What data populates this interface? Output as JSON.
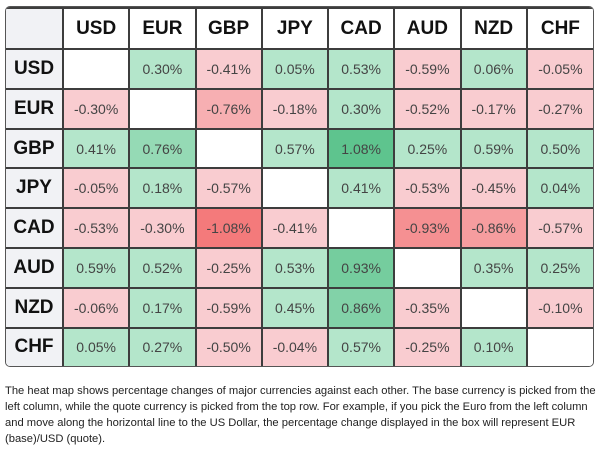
{
  "chart_data": {
    "type": "heatmap",
    "title": "",
    "columns": [
      "USD",
      "EUR",
      "GBP",
      "JPY",
      "CAD",
      "AUD",
      "NZD",
      "CHF"
    ],
    "rows": [
      "USD",
      "EUR",
      "GBP",
      "JPY",
      "CAD",
      "AUD",
      "NZD",
      "CHF"
    ],
    "values": [
      [
        null,
        0.3,
        -0.41,
        0.05,
        0.53,
        -0.59,
        0.06,
        -0.05
      ],
      [
        -0.3,
        null,
        -0.76,
        -0.18,
        0.3,
        -0.52,
        -0.17,
        -0.27
      ],
      [
        0.41,
        0.76,
        null,
        0.57,
        1.08,
        0.25,
        0.59,
        0.5
      ],
      [
        -0.05,
        0.18,
        -0.57,
        null,
        0.41,
        -0.53,
        -0.45,
        0.04
      ],
      [
        -0.53,
        -0.3,
        -1.08,
        -0.41,
        null,
        -0.93,
        -0.86,
        -0.57
      ],
      [
        0.59,
        0.52,
        -0.25,
        0.53,
        0.93,
        null,
        0.35,
        0.25
      ],
      [
        -0.06,
        0.17,
        -0.59,
        0.45,
        0.86,
        -0.35,
        null,
        -0.1
      ],
      [
        0.05,
        0.27,
        -0.5,
        -0.04,
        0.57,
        -0.25,
        0.1,
        null
      ]
    ],
    "unit": "%",
    "colors": {
      "positive_light": "#b4e6cb",
      "positive_strong": "#5ec48e",
      "negative_light": "#f9ccd0",
      "negative_strong": "#f47a7b",
      "empty": "#ffffff"
    }
  },
  "description": "The heat map shows percentage changes of major currencies against each other. The base currency is picked from the left column, while the quote currency is picked from the top row. For example, if you pick the Euro from the left column and move along the horizontal line to the US Dollar, the percentage change displayed in the box will represent EUR (base)/USD (quote)."
}
